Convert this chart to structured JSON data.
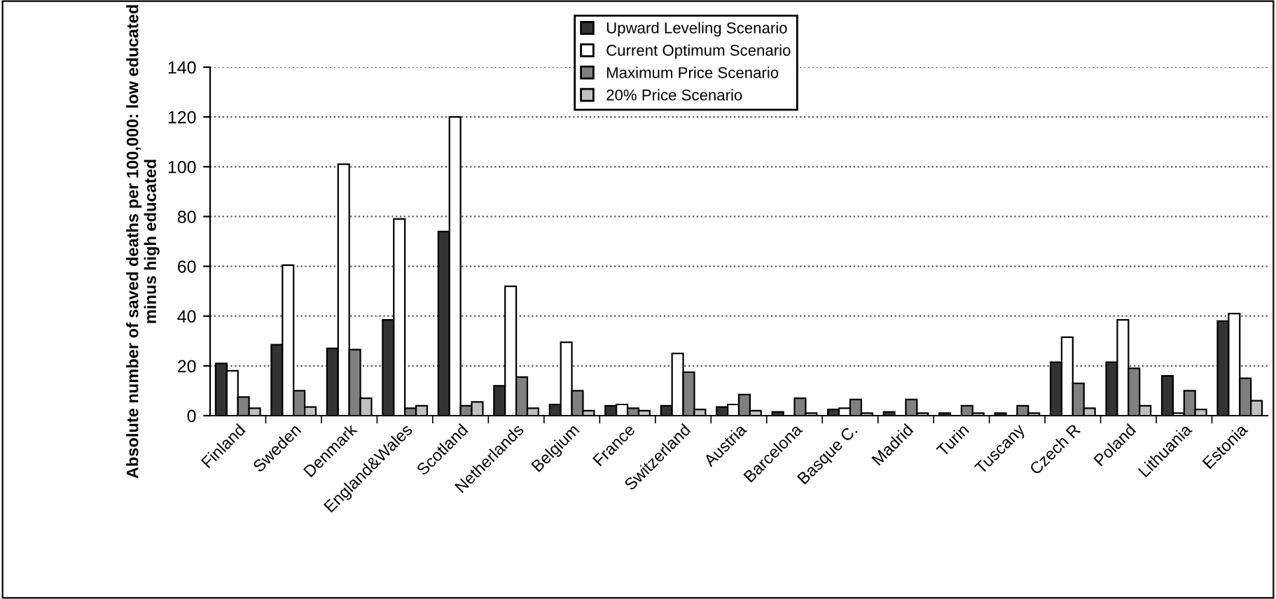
{
  "chart_data": {
    "type": "bar",
    "ylabel": "Absolute number of saved deaths per 100,000: low educated\nminus high educated",
    "categories": [
      "Finland",
      "Sweden",
      "Denmark",
      "England&Wales",
      "Scotland",
      "Netherlands",
      "Belgium",
      "France",
      "Switzerland",
      "Austria",
      "Barcelona",
      "Basque C.",
      "Madrid",
      "Turin",
      "Tuscany",
      "Czech R",
      "Poland",
      "Lithuania",
      "Estonia"
    ],
    "series": [
      {
        "name": "Upward Leveling Scenario",
        "color": "#333333",
        "values": [
          21,
          28.5,
          27,
          38.5,
          74,
          12,
          4.5,
          4,
          4,
          3.5,
          1.5,
          2.5,
          1.5,
          1,
          1,
          21.5,
          21.5,
          16,
          38
        ]
      },
      {
        "name": "Current Optimum Scenario",
        "color": "#ffffff",
        "values": [
          18,
          60.5,
          101,
          79,
          120,
          52,
          29.5,
          4.5,
          25,
          4.5,
          null,
          3,
          null,
          null,
          null,
          31.5,
          38.5,
          1,
          41
        ]
      },
      {
        "name": "Maximum Price Scenario",
        "color": "#808080",
        "values": [
          7.5,
          10,
          26.5,
          3,
          4,
          15.5,
          10,
          3,
          17.5,
          8.5,
          7,
          6.5,
          6.5,
          4,
          4,
          13,
          19,
          10,
          15
        ]
      },
      {
        "name": "20% Price Scenario",
        "color": "#c0c0c0",
        "values": [
          3,
          3.5,
          7,
          4,
          5.5,
          3,
          2,
          2,
          2.5,
          2,
          1,
          1,
          1,
          1,
          1,
          3,
          4,
          2.5,
          6
        ]
      }
    ],
    "ylim": [
      0,
      140
    ],
    "yticks": [
      0,
      20,
      40,
      60,
      80,
      100,
      120,
      140
    ],
    "grid": "y",
    "legend": "top"
  }
}
